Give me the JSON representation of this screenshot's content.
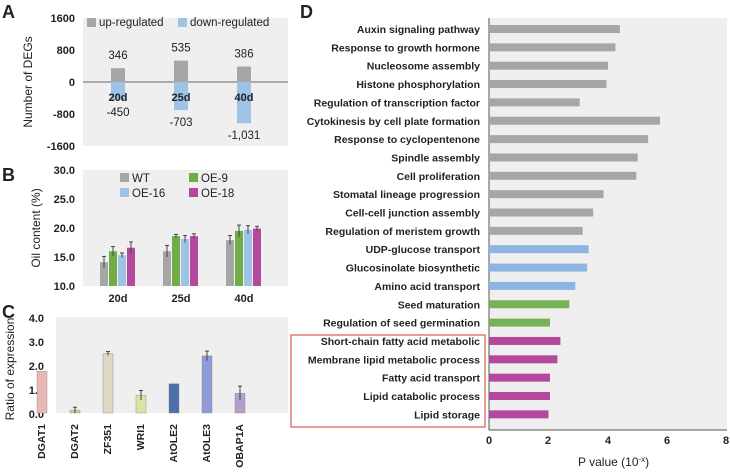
{
  "panel_labels": {
    "a": "A",
    "b": "B",
    "c": "C",
    "d": "D"
  },
  "colors": {
    "up": "#a6a6a6",
    "down": "#9dc3e6",
    "wt": "#a6a6a6",
    "oe9": "#70ad47",
    "oe16": "#9dc3e6",
    "oe18": "#b4489d",
    "plot_bg": "#efefef",
    "d_gray": "#a6a6a6",
    "d_blue": "#8eb4e3",
    "d_green": "#77b354",
    "d_purple": "#b4489d",
    "highlight_box": "#e05a4f"
  },
  "chart_data": [
    {
      "id": "A",
      "type": "bar",
      "ylabel": "Number of DEGs",
      "yticks": [
        "1600",
        "800",
        "0",
        "-800",
        "-1600"
      ],
      "ylim": [
        -1600,
        1600
      ],
      "categories": [
        "20d",
        "25d",
        "40d"
      ],
      "series": [
        {
          "name": "up-regulated",
          "values": [
            346,
            535,
            386
          ],
          "labels": [
            "346",
            "535",
            "386"
          ]
        },
        {
          "name": "down-regulated",
          "values": [
            -450,
            -703,
            -1031
          ],
          "labels": [
            "-450",
            "-703",
            "-1,031"
          ]
        }
      ],
      "legend": "top"
    },
    {
      "id": "B",
      "type": "bar",
      "ylabel": "Oil content (%)",
      "yticks": [
        "30.0",
        "25.0",
        "20.0",
        "15.0",
        "10.0"
      ],
      "ylim": [
        10,
        30
      ],
      "categories": [
        "20d",
        "25d",
        "40d"
      ],
      "series": [
        {
          "name": "WT",
          "values": [
            14.1,
            16.0,
            17.9
          ],
          "errors": [
            1.0,
            1.0,
            0.8
          ]
        },
        {
          "name": "OE-9",
          "values": [
            16.0,
            18.6,
            19.5
          ],
          "errors": [
            0.8,
            0.3,
            1.0
          ]
        },
        {
          "name": "OE-16",
          "values": [
            15.3,
            18.1,
            19.7
          ],
          "errors": [
            0.4,
            0.6,
            0.7
          ]
        },
        {
          "name": "OE-18",
          "values": [
            16.6,
            18.6,
            19.9
          ],
          "errors": [
            1.0,
            0.4,
            0.4
          ]
        }
      ],
      "legend": "top"
    },
    {
      "id": "C",
      "type": "bar",
      "ylabel": "Ratio of expression",
      "yticks": [
        "4.0",
        "3.0",
        "2.0",
        "1.0",
        "0.0"
      ],
      "ylim": [
        0,
        4
      ],
      "categories": [
        "DGAT1",
        "DGAT2",
        "ZF351",
        "WRI1",
        "AtOLE2",
        "AtOLE3",
        "OBAP1A"
      ],
      "values": [
        1.74,
        0.12,
        2.48,
        0.74,
        1.22,
        2.38,
        0.82
      ],
      "errors": [
        0.0,
        0.12,
        0.08,
        0.2,
        0.0,
        0.2,
        0.3
      ],
      "bar_colors": [
        "#e6b9b8",
        "#c3d69b",
        "#ddd9c4",
        "#d7e4a3",
        "#4f6fa8",
        "#8e9bd6",
        "#b1a0c7"
      ]
    },
    {
      "id": "D",
      "type": "bar",
      "orientation": "horizontal",
      "xlabel_main": "P value (10",
      "xlabel_sup": "-x",
      "xlabel_end": ")",
      "xlim": [
        0,
        8
      ],
      "xticks": [
        "0",
        "2",
        "4",
        "6",
        "8"
      ],
      "categories": [
        "Auxin signaling pathway",
        "Response to growth hormone",
        "Nucleosome assembly",
        "Histone phosphorylation",
        "Regulation of transcription factor",
        "Cytokinesis by cell plate formation",
        "Response to cyclopentenone",
        "Spindle assembly",
        "Cell proliferation",
        "Stomatal lineage progression",
        "Cell-cell junction assembly",
        "Regulation of meristem growth",
        "UDP-glucose transport",
        "Glucosinolate biosynthetic",
        "Amino acid transport",
        "Seed maturation",
        "Regulation of seed germination",
        "Short-chain fatty acid metabolic",
        "Membrane lipid metabolic process",
        "Fatty acid transport",
        "Lipid catabolic process",
        "Lipid storage"
      ],
      "values": [
        4.4,
        4.25,
        4.0,
        3.95,
        3.05,
        5.75,
        5.35,
        5.0,
        4.95,
        3.85,
        3.5,
        3.15,
        3.35,
        3.3,
        2.9,
        2.7,
        2.05,
        2.4,
        2.3,
        2.05,
        2.05,
        2.0
      ],
      "groups": [
        "gray",
        "gray",
        "gray",
        "gray",
        "gray",
        "gray",
        "gray",
        "gray",
        "gray",
        "gray",
        "gray",
        "gray",
        "blue",
        "blue",
        "blue",
        "green",
        "green",
        "purple",
        "purple",
        "purple",
        "purple",
        "purple"
      ],
      "highlighted": [
        "Short-chain fatty acid metabolic",
        "Membrane lipid metabolic process",
        "Fatty acid transport",
        "Lipid catabolic process",
        "Lipid storage"
      ]
    }
  ]
}
